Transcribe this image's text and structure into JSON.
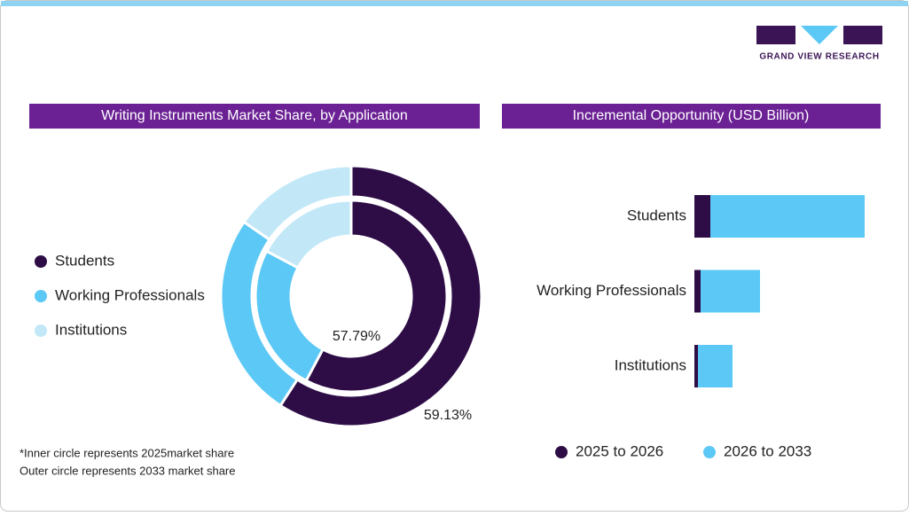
{
  "logo": {
    "text": "GRAND VIEW RESEARCH"
  },
  "chart_data": [
    {
      "type": "pie",
      "title": "Writing Instruments Market Share, by Application",
      "categories": [
        "Students",
        "Working Professionals",
        "Institutions"
      ],
      "colors": [
        "#2e0d47",
        "#5bc8f5",
        "#c2e8f8"
      ],
      "series": [
        {
          "values": [
            57.79,
            25.0,
            17.21
          ],
          "value_labels": [
            "57.79%",
            null,
            null
          ]
        },
        {
          "values": [
            59.13,
            25.5,
            15.37
          ],
          "value_labels": [
            "59.13%",
            null,
            null
          ]
        }
      ],
      "notes": [
        "*Inner circle represents 2025market share",
        "Outer circle represents 2033 market share"
      ]
    },
    {
      "type": "bar",
      "title": "Incremental Opportunity (USD Billion)",
      "categories": [
        "Students",
        "Working Professionals",
        "Institutions"
      ],
      "series": [
        {
          "name": "2025 to 2026",
          "color": "#2e0d47",
          "values": [
            0.9,
            0.35,
            0.2
          ]
        },
        {
          "name": "2026 to 2033",
          "color": "#5bc8f5",
          "values": [
            8.7,
            3.35,
            1.95
          ]
        }
      ],
      "xlim": [
        0,
        10
      ]
    }
  ]
}
